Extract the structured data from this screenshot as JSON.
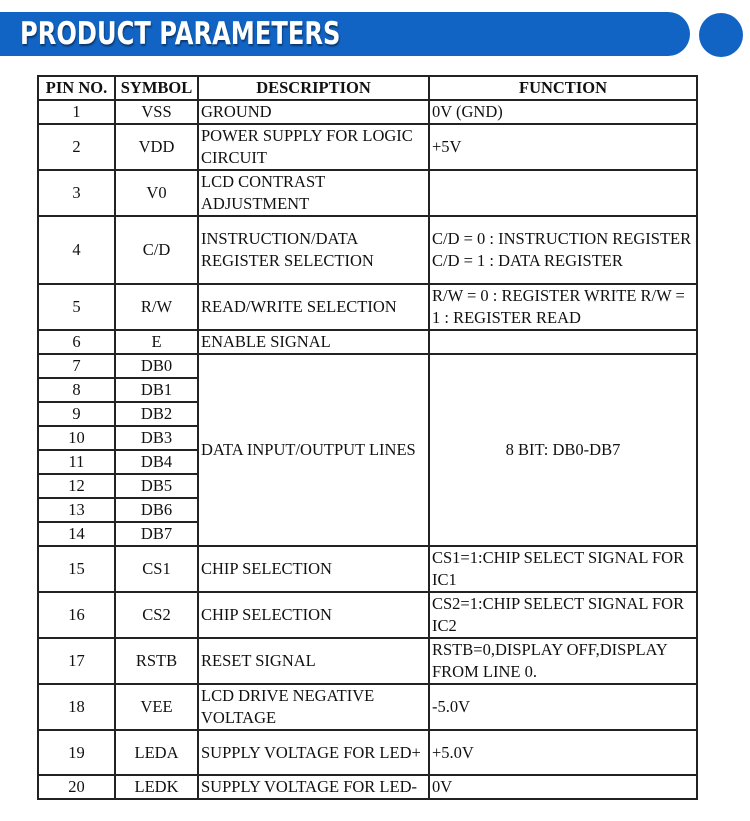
{
  "header": {
    "title": "PRODUCT PARAMETERS",
    "accent": "#1164c4"
  },
  "table": {
    "columns": [
      "PIN NO.",
      "SYMBOL",
      "DESCRIPTION",
      "FUNCTION"
    ],
    "rows": [
      {
        "pin": "1",
        "symbol": "VSS",
        "description": "GROUND",
        "function": "0V (GND)"
      },
      {
        "pin": "2",
        "symbol": "VDD",
        "description": "POWER SUPPLY FOR LOGIC CIRCUIT",
        "function": "+5V"
      },
      {
        "pin": "3",
        "symbol": "V0",
        "description": " LCD CONTRAST ADJUSTMENT",
        "function": ""
      },
      {
        "pin": "4",
        "symbol": "C/D",
        "description": "INSTRUCTION/DATA REGISTER SELECTION",
        "function": "C/D = 0 : INSTRUCTION REGISTER C/D = 1 : DATA REGISTER"
      },
      {
        "pin": "5",
        "symbol": "R/W",
        "description": "READ/WRITE SELECTION",
        "function": "R/W = 0 : REGISTER WRITE R/W = 1 : REGISTER READ"
      },
      {
        "pin": "6",
        "symbol": "E",
        "description": "ENABLE SIGNAL",
        "function": ""
      },
      {
        "pin": "7",
        "symbol": "DB0",
        "description": "DATA INPUT/OUTPUT LINES",
        "function": "8 BIT: DB0-DB7"
      },
      {
        "pin": "8",
        "symbol": "DB1"
      },
      {
        "pin": "9",
        "symbol": "DB2"
      },
      {
        "pin": "10",
        "symbol": "DB3"
      },
      {
        "pin": "11",
        "symbol": "DB4"
      },
      {
        "pin": "12",
        "symbol": "DB5"
      },
      {
        "pin": "13",
        "symbol": "DB6"
      },
      {
        "pin": "14",
        "symbol": "DB7"
      },
      {
        "pin": "15",
        "symbol": "CS1",
        "description": "CHIP SELECTION",
        "function": "CS1=1:CHIP SELECT SIGNAL FOR IC1"
      },
      {
        "pin": "16",
        "symbol": "CS2",
        "description": "CHIP SELECTION",
        "function": "CS2=1:CHIP SELECT SIGNAL FOR IC2"
      },
      {
        "pin": "17",
        "symbol": "RSTB",
        "description": "RESET SIGNAL",
        "function": "RSTB=0,DISPLAY OFF,DISPLAY FROM LINE 0."
      },
      {
        "pin": "18",
        "symbol": "VEE",
        "description": "LCD DRIVE NEGATIVE VOLTAGE",
        "function": "-5.0V"
      },
      {
        "pin": "19",
        "symbol": "LEDA",
        "description": "SUPPLY VOLTAGE FOR LED+",
        "function": "+5.0V"
      },
      {
        "pin": "20",
        "symbol": "LEDK",
        "description": "SUPPLY VOLTAGE FOR LED-",
        "function": "0V"
      }
    ]
  }
}
